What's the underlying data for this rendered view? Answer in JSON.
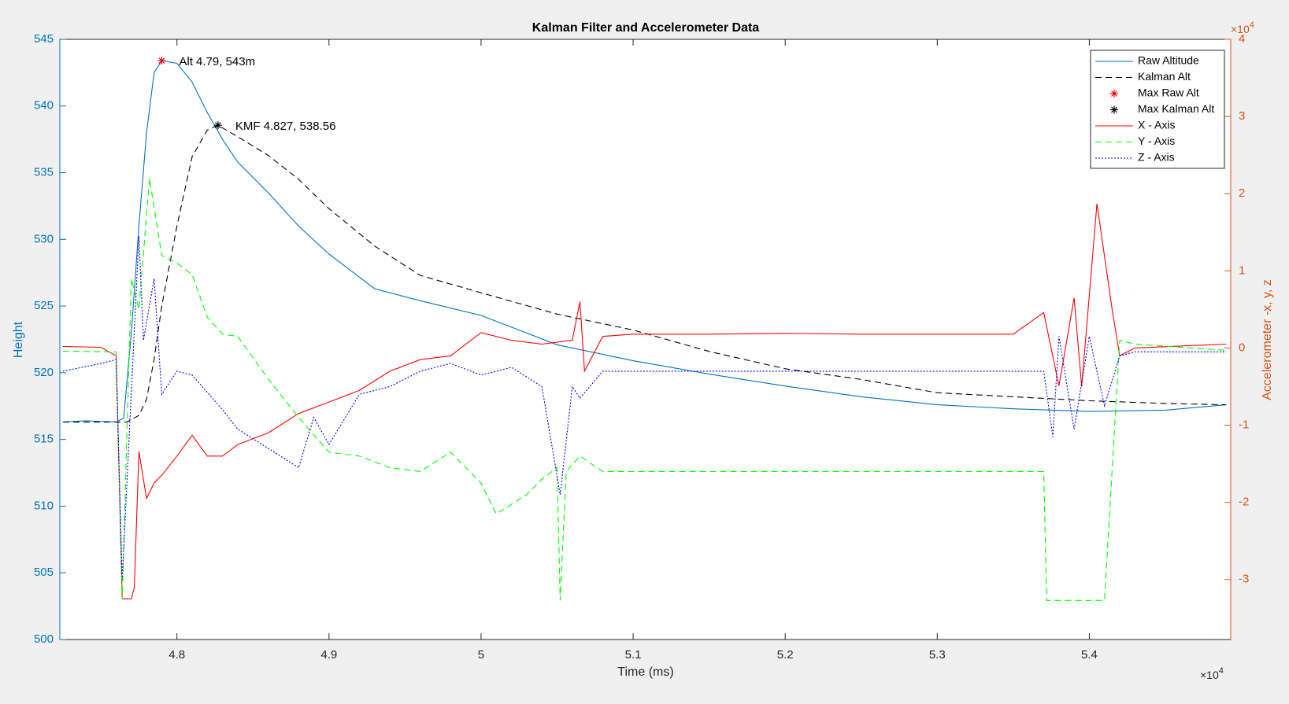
{
  "chart_data": {
    "type": "line",
    "title": "Kalman Filter and Accelerometer Data",
    "x_label": "Time (ms)",
    "y_label": "Height",
    "y2_label": "Accelerometer -x, y, z",
    "x_scale_label": {
      "base": "×10",
      "exponent": "4"
    },
    "y2_scale_label": {
      "base": "×10",
      "exponent": "4"
    },
    "xlim": [
      47230,
      54930
    ],
    "xticks": [
      {
        "value": 48000,
        "label": "4.8"
      },
      {
        "value": 49000,
        "label": "4.9"
      },
      {
        "value": 50000,
        "label": "5"
      },
      {
        "value": 51000,
        "label": "5.1"
      },
      {
        "value": 52000,
        "label": "5.2"
      },
      {
        "value": 53000,
        "label": "5.3"
      },
      {
        "value": 54000,
        "label": "5.4"
      }
    ],
    "ylim": [
      500,
      545
    ],
    "yticks": [
      500,
      505,
      510,
      515,
      520,
      525,
      530,
      535,
      540,
      545
    ],
    "y2lim": [
      -37770,
      40000
    ],
    "y2ticks": [
      {
        "value": -30000,
        "label": "-3"
      },
      {
        "value": -20000,
        "label": "-2"
      },
      {
        "value": -10000,
        "label": "-1"
      },
      {
        "value": 0,
        "label": "0"
      },
      {
        "value": 10000,
        "label": "1"
      },
      {
        "value": 20000,
        "label": "2"
      },
      {
        "value": 30000,
        "label": "3"
      },
      {
        "value": 40000,
        "label": "4"
      }
    ],
    "y_axis_color": "#0072bd",
    "y2_axis_color": "#d95319",
    "grid": false,
    "legend": "top-right",
    "series": [
      {
        "name": "Raw Altitude",
        "color": "#0072bd",
        "style": "solid",
        "axis": "y",
        "x": [
          47250,
          47400,
          47600,
          47650,
          47700,
          47750,
          47800,
          47850,
          47900,
          48000,
          48100,
          48200,
          48300,
          48400,
          48600,
          48800,
          49000,
          49300,
          49600,
          50000,
          50500,
          51000,
          51500,
          52000,
          52500,
          53000,
          53500,
          54000,
          54500,
          54900
        ],
        "values": [
          516.3,
          516.4,
          516.3,
          516.6,
          523,
          531,
          538,
          542.5,
          543.4,
          543.2,
          541.8,
          539.5,
          537.5,
          535.8,
          533.5,
          531,
          528.9,
          526.3,
          525.4,
          524.3,
          522.1,
          520.9,
          519.9,
          519,
          518.2,
          517.6,
          517.3,
          517.1,
          517.2,
          517.6
        ]
      },
      {
        "name": "Kalman Alt",
        "color": "#000000",
        "style": "dashed",
        "axis": "y",
        "x": [
          47250,
          47670,
          47750,
          47800,
          47850,
          47900,
          48000,
          48100,
          48200,
          48270,
          48400,
          48600,
          48800,
          49000,
          49300,
          49600,
          50000,
          50500,
          51000,
          51500,
          52000,
          52500,
          53000,
          53500,
          54000,
          54500,
          54900
        ],
        "values": [
          516.3,
          516.3,
          516.8,
          518,
          521,
          525,
          531,
          536.2,
          538.2,
          538.56,
          537.7,
          536.3,
          534.5,
          532.3,
          529.5,
          527.3,
          526,
          524.4,
          523.2,
          521.6,
          520.3,
          519.5,
          518.5,
          518.2,
          517.9,
          517.7,
          517.6
        ]
      },
      {
        "name": "Max Raw Alt",
        "color": "#ff0000",
        "style": "marker",
        "axis": "y",
        "label": "Alt 4.79, 543m",
        "x": [
          47900
        ],
        "values": [
          543.4
        ]
      },
      {
        "name": "Max Kalman Alt",
        "color": "#000000",
        "style": "marker",
        "axis": "y",
        "label": "KMF 4.827, 538.56",
        "x": [
          48270
        ],
        "values": [
          538.56
        ]
      },
      {
        "name": "X - Axis",
        "color": "#ff0000",
        "style": "solid",
        "axis": "y2",
        "x": [
          47250,
          47500,
          47600,
          47640,
          47700,
          47720,
          47750,
          47800,
          47850,
          47900,
          48000,
          48100,
          48200,
          48300,
          48400,
          48600,
          48800,
          49000,
          49200,
          49400,
          49600,
          49800,
          50000,
          50200,
          50400,
          50600,
          50650,
          50680,
          50800,
          51000,
          51500,
          52000,
          52500,
          53000,
          53500,
          53700,
          53800,
          53900,
          53950,
          54050,
          54150,
          54200,
          54300,
          54900
        ],
        "values": [
          200,
          100,
          -1000,
          -32500,
          -32500,
          -31000,
          -13400,
          -19500,
          -17500,
          -16500,
          -14000,
          -11300,
          -14000,
          -14000,
          -12500,
          -11000,
          -8500,
          -7000,
          -5500,
          -3000,
          -1500,
          -1000,
          2000,
          1000,
          500,
          1000,
          6000,
          -3000,
          1500,
          1800,
          1800,
          1900,
          1800,
          1800,
          1800,
          4600,
          -4900,
          6500,
          -5000,
          18700,
          5000,
          -1000,
          0,
          500
        ]
      },
      {
        "name": "Y - Axis",
        "color": "#00ff00",
        "style": "dashed",
        "axis": "y2",
        "x": [
          47250,
          47600,
          47640,
          47700,
          47750,
          47820,
          47900,
          48000,
          48100,
          48200,
          48300,
          48400,
          48600,
          48800,
          49000,
          49200,
          49400,
          49600,
          49800,
          50000,
          50100,
          50300,
          50400,
          50500,
          50520,
          50560,
          50650,
          50800,
          51000,
          52000,
          53000,
          53700,
          53720,
          54100,
          54200,
          54300,
          54900
        ],
        "values": [
          -400,
          -500,
          -32500,
          9000,
          5000,
          22000,
          12000,
          11000,
          9500,
          4000,
          1800,
          1500,
          -4000,
          -9000,
          -13500,
          -14000,
          -15500,
          -16000,
          -13500,
          -17500,
          -21500,
          -19000,
          -17000,
          -15500,
          -32700,
          -16000,
          -14000,
          -16000,
          -16000,
          -16000,
          -16000,
          -16000,
          -32700,
          -32700,
          1000,
          500,
          -300
        ]
      },
      {
        "name": "Z - Axis",
        "color": "#0000ff",
        "style": "dotted",
        "axis": "y2",
        "x": [
          47250,
          47500,
          47600,
          47640,
          47750,
          47780,
          47850,
          47900,
          48000,
          48100,
          48300,
          48400,
          48600,
          48800,
          48900,
          49000,
          49200,
          49400,
          49600,
          49800,
          50000,
          50200,
          50400,
          50520,
          50600,
          50650,
          50800,
          51000,
          52000,
          53000,
          53700,
          53760,
          53800,
          53900,
          54000,
          54100,
          54200,
          54300,
          54900
        ],
        "values": [
          -3000,
          -2000,
          -1500,
          -30000,
          14500,
          1000,
          9000,
          -6000,
          -3000,
          -3500,
          -8000,
          -10500,
          -13000,
          -15500,
          -9000,
          -12500,
          -6000,
          -5000,
          -3000,
          -2000,
          -3500,
          -2500,
          -5000,
          -19000,
          -5000,
          -6500,
          -3000,
          -3000,
          -3000,
          -3000,
          -3000,
          -11500,
          1500,
          -10500,
          1500,
          -7500,
          -1000,
          -500,
          -500
        ]
      }
    ]
  }
}
